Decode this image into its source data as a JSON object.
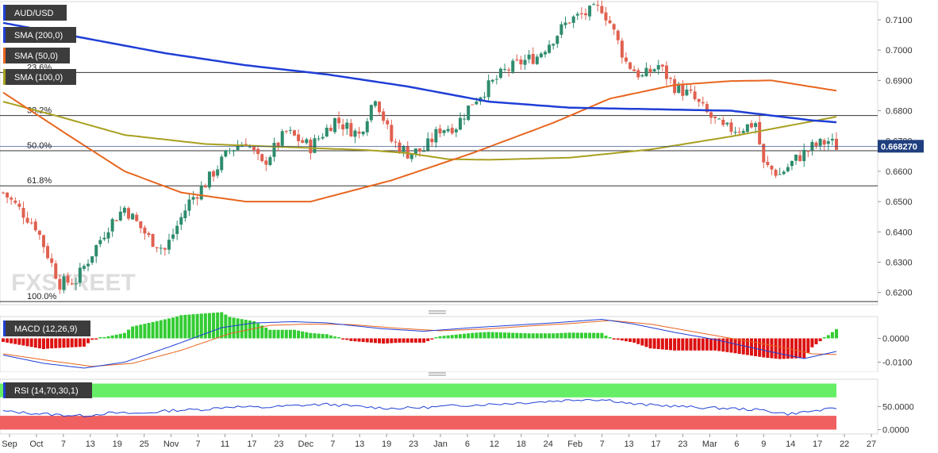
{
  "chart_data": [
    {
      "type": "candlestick",
      "symbol": "AUD/USD",
      "current_price": "0.668270",
      "indicators": [
        {
          "name": "SMA (200,0)",
          "color": "#1f3fd6"
        },
        {
          "name": "SMA (50,0)",
          "color": "#e8661f"
        },
        {
          "name": "SMA (100,0)",
          "color": "#a8a020"
        }
      ],
      "fibonacci": [
        {
          "label": "23.6%",
          "value": 0.6926
        },
        {
          "label": "38.2%",
          "value": 0.6784
        },
        {
          "label": "50.0%",
          "value": 0.6668
        },
        {
          "label": "61.8%",
          "value": 0.6552
        },
        {
          "label": "100.0%",
          "value": 0.617
        }
      ],
      "ylim": [
        0.6165,
        0.7155
      ],
      "y_ticks": [
        "0.7100",
        "0.7000",
        "0.6900",
        "0.6800",
        "0.6700",
        "0.6600",
        "0.6500",
        "0.6400",
        "0.6300",
        "0.6200"
      ],
      "colors": {
        "up": "#2e8b6e",
        "down": "#e06050"
      },
      "watermark": "FXSTREET",
      "ohlc_keypoints": [
        [
          0,
          0.653
        ],
        [
          8,
          0.642
        ],
        [
          14,
          0.623
        ],
        [
          18,
          0.624
        ],
        [
          26,
          0.642
        ],
        [
          30,
          0.648
        ],
        [
          36,
          0.638
        ],
        [
          40,
          0.634
        ],
        [
          46,
          0.65
        ],
        [
          50,
          0.656
        ],
        [
          56,
          0.667
        ],
        [
          60,
          0.67
        ],
        [
          64,
          0.662
        ],
        [
          70,
          0.673
        ],
        [
          76,
          0.668
        ],
        [
          82,
          0.677
        ],
        [
          88,
          0.672
        ],
        [
          92,
          0.685
        ],
        [
          96,
          0.67
        ],
        [
          100,
          0.666
        ],
        [
          104,
          0.667
        ],
        [
          108,
          0.674
        ],
        [
          112,
          0.675
        ],
        [
          116,
          0.683
        ],
        [
          120,
          0.688
        ],
        [
          124,
          0.693
        ],
        [
          128,
          0.696
        ],
        [
          132,
          0.698
        ],
        [
          136,
          0.704
        ],
        [
          140,
          0.71
        ],
        [
          144,
          0.712
        ],
        [
          148,
          0.714
        ],
        [
          150,
          0.709
        ],
        [
          154,
          0.696
        ],
        [
          158,
          0.691
        ],
        [
          162,
          0.695
        ],
        [
          166,
          0.688
        ],
        [
          170,
          0.685
        ],
        [
          174,
          0.679
        ],
        [
          178,
          0.674
        ],
        [
          182,
          0.674
        ],
        [
          186,
          0.676
        ],
        [
          188,
          0.662
        ],
        [
          192,
          0.659
        ],
        [
          196,
          0.664
        ],
        [
          200,
          0.668
        ],
        [
          204,
          0.67
        ],
        [
          206,
          0.6683
        ]
      ],
      "sma200": [
        [
          0,
          0.709
        ],
        [
          20,
          0.704
        ],
        [
          40,
          0.699
        ],
        [
          60,
          0.695
        ],
        [
          80,
          0.692
        ],
        [
          100,
          0.688
        ],
        [
          120,
          0.683
        ],
        [
          140,
          0.681
        ],
        [
          160,
          0.6805
        ],
        [
          180,
          0.68
        ],
        [
          200,
          0.6768
        ],
        [
          206,
          0.6762
        ]
      ],
      "sma50": [
        [
          0,
          0.686
        ],
        [
          16,
          0.672
        ],
        [
          30,
          0.66
        ],
        [
          44,
          0.653
        ],
        [
          60,
          0.65
        ],
        [
          76,
          0.65
        ],
        [
          96,
          0.657
        ],
        [
          116,
          0.666
        ],
        [
          136,
          0.676
        ],
        [
          150,
          0.684
        ],
        [
          166,
          0.6885
        ],
        [
          180,
          0.6898
        ],
        [
          190,
          0.69
        ],
        [
          206,
          0.6866
        ]
      ],
      "sma100": [
        [
          0,
          0.683
        ],
        [
          14,
          0.678
        ],
        [
          30,
          0.672
        ],
        [
          50,
          0.669
        ],
        [
          70,
          0.668
        ],
        [
          90,
          0.667
        ],
        [
          100,
          0.666
        ],
        [
          110,
          0.664
        ],
        [
          120,
          0.6638
        ],
        [
          140,
          0.6645
        ],
        [
          160,
          0.6672
        ],
        [
          180,
          0.6715
        ],
        [
          196,
          0.6755
        ],
        [
          206,
          0.678
        ]
      ]
    },
    {
      "type": "line",
      "title": "MACD (12,26,9)",
      "ylim": [
        -0.0135,
        0.0085
      ],
      "y_ticks": [
        "0.0000",
        "-0.0100"
      ],
      "colors": {
        "macd": "#1f3fd6",
        "signal": "#e8661f",
        "hist_pos": "#33cc33",
        "hist_neg": "#dd1111"
      },
      "macd_keypoints": [
        [
          0,
          -0.007
        ],
        [
          10,
          -0.0105
        ],
        [
          20,
          -0.0125
        ],
        [
          30,
          -0.01
        ],
        [
          42,
          -0.003
        ],
        [
          54,
          0.0045
        ],
        [
          62,
          0.0065
        ],
        [
          72,
          0.007
        ],
        [
          80,
          0.0065
        ],
        [
          94,
          0.004
        ],
        [
          104,
          0.003
        ],
        [
          116,
          0.0045
        ],
        [
          126,
          0.0055
        ],
        [
          136,
          0.0065
        ],
        [
          148,
          0.008
        ],
        [
          156,
          0.006
        ],
        [
          166,
          0.0025
        ],
        [
          176,
          -0.0005
        ],
        [
          188,
          -0.005
        ],
        [
          198,
          -0.0085
        ],
        [
          206,
          -0.0055
        ]
      ],
      "signal_keypoints": [
        [
          0,
          -0.0065
        ],
        [
          12,
          -0.0095
        ],
        [
          22,
          -0.0118
        ],
        [
          32,
          -0.0105
        ],
        [
          44,
          -0.005
        ],
        [
          56,
          0.002
        ],
        [
          66,
          0.0055
        ],
        [
          76,
          0.006
        ],
        [
          86,
          0.0058
        ],
        [
          98,
          0.0042
        ],
        [
          108,
          0.0032
        ],
        [
          120,
          0.004
        ],
        [
          130,
          0.0052
        ],
        [
          140,
          0.0062
        ],
        [
          150,
          0.0075
        ],
        [
          160,
          0.006
        ],
        [
          170,
          0.003
        ],
        [
          180,
          0.0
        ],
        [
          192,
          -0.0035
        ],
        [
          200,
          -0.0065
        ],
        [
          206,
          -0.0068
        ]
      ]
    },
    {
      "type": "line",
      "title": "RSI (14,70,30,1)",
      "ylim": [
        -6,
        106
      ],
      "y_ticks": [
        "50.0000",
        "0.0000"
      ],
      "overbought": 70,
      "oversold": 30,
      "colors": {
        "rsi": "#1f3fd6",
        "overbought": "#66ee66",
        "oversold": "#f06060"
      },
      "rsi_keypoints": [
        [
          0,
          40
        ],
        [
          8,
          35
        ],
        [
          14,
          32
        ],
        [
          20,
          30
        ],
        [
          26,
          36
        ],
        [
          34,
          35
        ],
        [
          42,
          42
        ],
        [
          50,
          44
        ],
        [
          56,
          50
        ],
        [
          64,
          48
        ],
        [
          72,
          52
        ],
        [
          80,
          55
        ],
        [
          88,
          50
        ],
        [
          96,
          46
        ],
        [
          104,
          48
        ],
        [
          112,
          52
        ],
        [
          120,
          55
        ],
        [
          128,
          58
        ],
        [
          136,
          62
        ],
        [
          144,
          66
        ],
        [
          150,
          64
        ],
        [
          156,
          55
        ],
        [
          164,
          52
        ],
        [
          172,
          48
        ],
        [
          180,
          46
        ],
        [
          188,
          42
        ],
        [
          194,
          34
        ],
        [
          200,
          40
        ],
        [
          206,
          46
        ]
      ]
    }
  ],
  "x_axis": {
    "labels": [
      "Sep",
      "Oct",
      "7",
      "13",
      "19",
      "25",
      "Nov",
      "7",
      "11",
      "17",
      "23",
      "Dec",
      "7",
      "13",
      "19",
      "23",
      "Jan",
      "6",
      "12",
      "18",
      "24",
      "Feb",
      "7",
      "13",
      "17",
      "23",
      "Mar",
      "6",
      "9",
      "14",
      "17",
      "22",
      "27"
    ]
  }
}
